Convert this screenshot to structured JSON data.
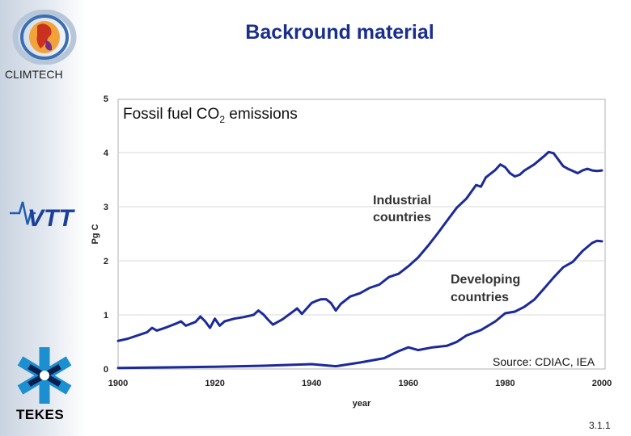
{
  "slide": {
    "title": "Backround material",
    "number": "3.1.1"
  },
  "logos": {
    "climtech": "CLIMTECH",
    "vtt": "VTT",
    "tekes": "TEKES"
  },
  "colors": {
    "line": "#1c2a99",
    "title": "#1a2f8c",
    "grid": "#d8d8d8"
  },
  "chart_data": {
    "type": "line",
    "title": "Fossil fuel CO2 emissions",
    "title_main": "Fossil fuel CO",
    "title_sub": "2",
    "title_end": " emissions",
    "xlabel": "year",
    "ylabel": "Pg C",
    "xlim": [
      1900,
      2000
    ],
    "ylim": [
      0,
      5
    ],
    "xticks": [
      "1900",
      "1920",
      "1940",
      "1960",
      "1980",
      "2000"
    ],
    "yticks": [
      "0",
      "1",
      "2",
      "3",
      "4",
      "5"
    ],
    "source": "Source: CDIAC, IEA",
    "annotations": [
      {
        "lines": [
          "Industrial",
          "countries"
        ]
      },
      {
        "lines": [
          "Developing",
          "countries"
        ]
      }
    ],
    "series": [
      {
        "name": "Industrial countries",
        "x": [
          1900,
          1902,
          1904,
          1906,
          1907,
          1908,
          1910,
          1912,
          1913,
          1914,
          1916,
          1917,
          1918,
          1919,
          1920,
          1921,
          1922,
          1924,
          1926,
          1928,
          1929,
          1930,
          1931,
          1932,
          1934,
          1936,
          1937,
          1938,
          1939,
          1940,
          1941,
          1942,
          1943,
          1944,
          1945,
          1946,
          1948,
          1950,
          1952,
          1954,
          1956,
          1958,
          1960,
          1962,
          1964,
          1966,
          1968,
          1970,
          1972,
          1974,
          1975,
          1976,
          1978,
          1979,
          1980,
          1981,
          1982,
          1983,
          1984,
          1986,
          1988,
          1989,
          1990,
          1991,
          1992,
          1993,
          1994,
          1995,
          1996,
          1997,
          1998,
          1999,
          2000
        ],
        "values": [
          0.52,
          0.56,
          0.62,
          0.68,
          0.76,
          0.71,
          0.77,
          0.84,
          0.88,
          0.8,
          0.87,
          0.97,
          0.88,
          0.76,
          0.93,
          0.8,
          0.88,
          0.93,
          0.96,
          1.0,
          1.08,
          1.01,
          0.91,
          0.82,
          0.92,
          1.05,
          1.12,
          1.02,
          1.12,
          1.22,
          1.26,
          1.29,
          1.29,
          1.22,
          1.08,
          1.2,
          1.34,
          1.4,
          1.5,
          1.56,
          1.7,
          1.76,
          1.9,
          2.06,
          2.27,
          2.5,
          2.74,
          2.98,
          3.15,
          3.4,
          3.37,
          3.54,
          3.68,
          3.78,
          3.73,
          3.62,
          3.56,
          3.59,
          3.67,
          3.78,
          3.93,
          4.01,
          3.99,
          3.87,
          3.75,
          3.7,
          3.66,
          3.62,
          3.67,
          3.7,
          3.67,
          3.66,
          3.67
        ]
      },
      {
        "name": "Developing countries",
        "x": [
          1900,
          1910,
          1920,
          1930,
          1940,
          1945,
          1950,
          1955,
          1958,
          1960,
          1962,
          1965,
          1968,
          1970,
          1972,
          1975,
          1978,
          1980,
          1982,
          1984,
          1986,
          1988,
          1990,
          1992,
          1994,
          1996,
          1998,
          1999,
          2000
        ],
        "values": [
          0.02,
          0.03,
          0.04,
          0.06,
          0.09,
          0.05,
          0.12,
          0.2,
          0.33,
          0.4,
          0.35,
          0.4,
          0.43,
          0.5,
          0.62,
          0.72,
          0.88,
          1.03,
          1.06,
          1.15,
          1.28,
          1.48,
          1.69,
          1.88,
          1.98,
          2.18,
          2.33,
          2.37,
          2.36
        ]
      }
    ]
  }
}
